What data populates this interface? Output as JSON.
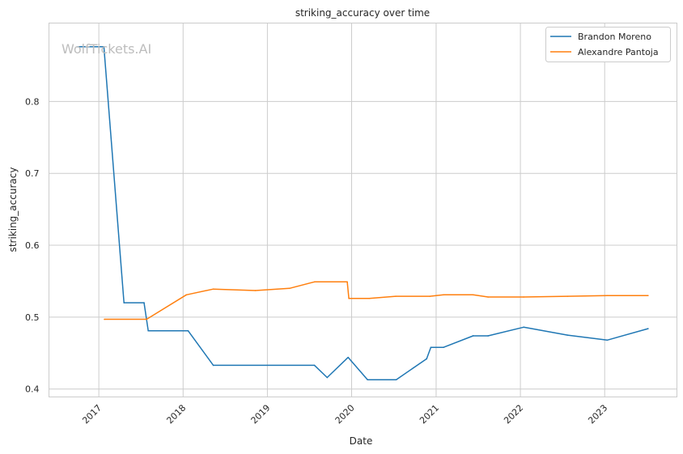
{
  "chart_data": {
    "type": "line",
    "title": "striking_accuracy over time",
    "xlabel": "Date",
    "ylabel": "striking_accuracy",
    "xlim": [
      "2016-05-30",
      "2023-11-10"
    ],
    "ylim": [
      0.389,
      0.909
    ],
    "x_ticks": [
      "2017",
      "2018",
      "2019",
      "2020",
      "2021",
      "2022",
      "2023"
    ],
    "y_ticks": [
      0.4,
      0.5,
      0.6,
      0.7,
      0.8
    ],
    "grid": true,
    "legend_position": "top-right",
    "watermark": "WolfTickets.AI",
    "series": [
      {
        "name": "Brandon Moreno",
        "color": "#1f77b4",
        "x": [
          "2016-10-01",
          "2017-01-23",
          "2017-04-20",
          "2017-07-16",
          "2017-08-03",
          "2018-01-23",
          "2018-05-12",
          "2019-07-24",
          "2019-09-17",
          "2019-12-17",
          "2020-03-10",
          "2020-07-12",
          "2020-11-21",
          "2020-12-09",
          "2021-02-02",
          "2021-06-10",
          "2021-08-14",
          "2022-01-15",
          "2022-07-24",
          "2023-01-12",
          "2023-07-08"
        ],
        "y": [
          0.876,
          0.876,
          0.52,
          0.52,
          0.481,
          0.481,
          0.433,
          0.433,
          0.416,
          0.444,
          0.413,
          0.413,
          0.442,
          0.458,
          0.458,
          0.474,
          0.474,
          0.486,
          0.475,
          0.468,
          0.484
        ]
      },
      {
        "name": "Alexandre Pantoja",
        "color": "#ff7f0e",
        "x": [
          "2017-01-25",
          "2017-07-27",
          "2018-01-15",
          "2018-05-12",
          "2018-11-10",
          "2019-04-07",
          "2019-07-24",
          "2019-12-13",
          "2019-12-20",
          "2020-03-17",
          "2020-07-10",
          "2020-12-05",
          "2021-02-02",
          "2021-06-10",
          "2021-08-14",
          "2022-01-15",
          "2022-07-24",
          "2023-01-12",
          "2023-07-08"
        ],
        "y": [
          0.497,
          0.497,
          0.531,
          0.539,
          0.537,
          0.54,
          0.549,
          0.549,
          0.526,
          0.526,
          0.529,
          0.529,
          0.531,
          0.531,
          0.528,
          0.528,
          0.529,
          0.53,
          0.53
        ]
      }
    ]
  }
}
